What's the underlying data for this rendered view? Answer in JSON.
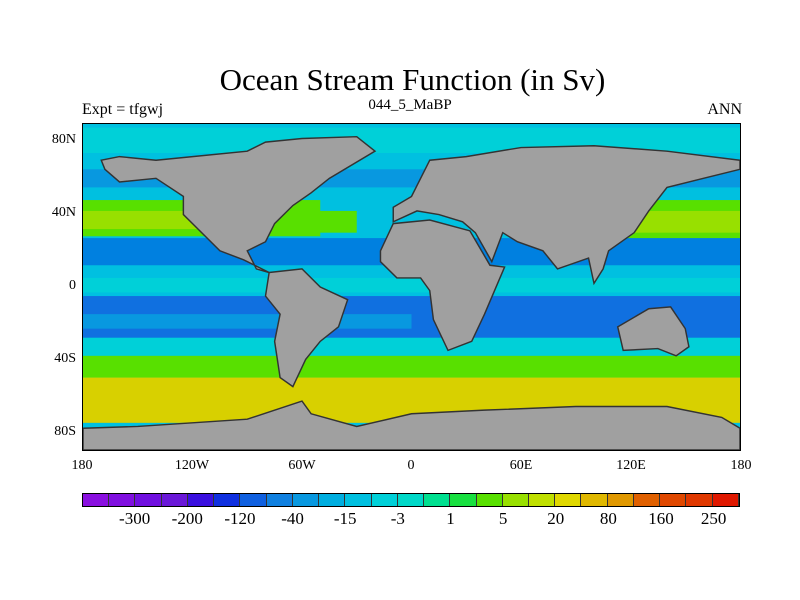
{
  "title": "Ocean Stream Function (in Sv)",
  "left_string": "Expt = tfgwj",
  "center_string": "044_5_MaBP",
  "right_string": "ANN",
  "chart_data": {
    "type": "map-contour",
    "title": "Ocean Stream Function (in Sv)",
    "lon_range": [
      -180,
      180
    ],
    "lat_range": [
      -90,
      90
    ],
    "x_ticks": [
      "180",
      "120W",
      "60W",
      "0",
      "60E",
      "120E",
      "180"
    ],
    "y_ticks": [
      "80N",
      "40N",
      "0",
      "40S",
      "80S"
    ],
    "colorbar": {
      "labels": [
        "-300",
        "-200",
        "-120",
        "-40",
        "-15",
        "-3",
        "1",
        "5",
        "20",
        "80",
        "160",
        "250"
      ],
      "colors": [
        "#8a10e0",
        "#8010e0",
        "#7010e0",
        "#6a18d8",
        "#3a10e0",
        "#1030e0",
        "#1060e0",
        "#1080e0",
        "#0898e0",
        "#00aee0",
        "#00c0e0",
        "#00d0d8",
        "#00d8c8",
        "#00e090",
        "#18e040",
        "#58e000",
        "#98e000",
        "#c0e000",
        "#e0d800",
        "#e0b800",
        "#e09800",
        "#e06000",
        "#e04800",
        "#e03800",
        "#e01800"
      ]
    },
    "ocean_color": "#00b8d8",
    "land_color": "#a0a0a0"
  }
}
